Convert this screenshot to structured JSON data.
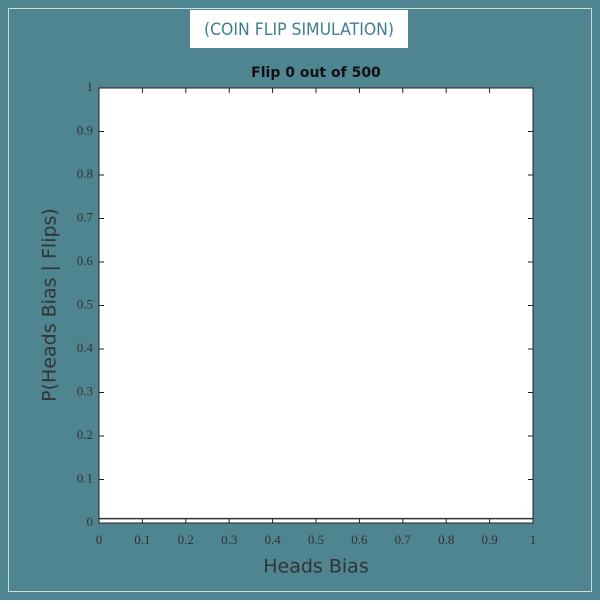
{
  "banner": "(COIN FLIP SIMULATION)",
  "chart_data": {
    "type": "line",
    "title": "Flip 0 out of 500",
    "xlabel": "Heads Bias",
    "ylabel": "P(Heads Bias | Flips)",
    "x": [
      0,
      1
    ],
    "series": [
      {
        "color": "#333333",
        "values": [
          0.01,
          0.01
        ]
      }
    ],
    "xlim": [
      0,
      1
    ],
    "ylim": [
      0,
      1
    ],
    "xticks": [
      0,
      0.1,
      0.2,
      0.3,
      0.4,
      0.5,
      0.6,
      0.7,
      0.8,
      0.9,
      1
    ],
    "yticks": [
      0,
      0.1,
      0.2,
      0.3,
      0.4,
      0.5,
      0.6,
      0.7,
      0.8,
      0.9,
      1
    ],
    "grid": false
  }
}
